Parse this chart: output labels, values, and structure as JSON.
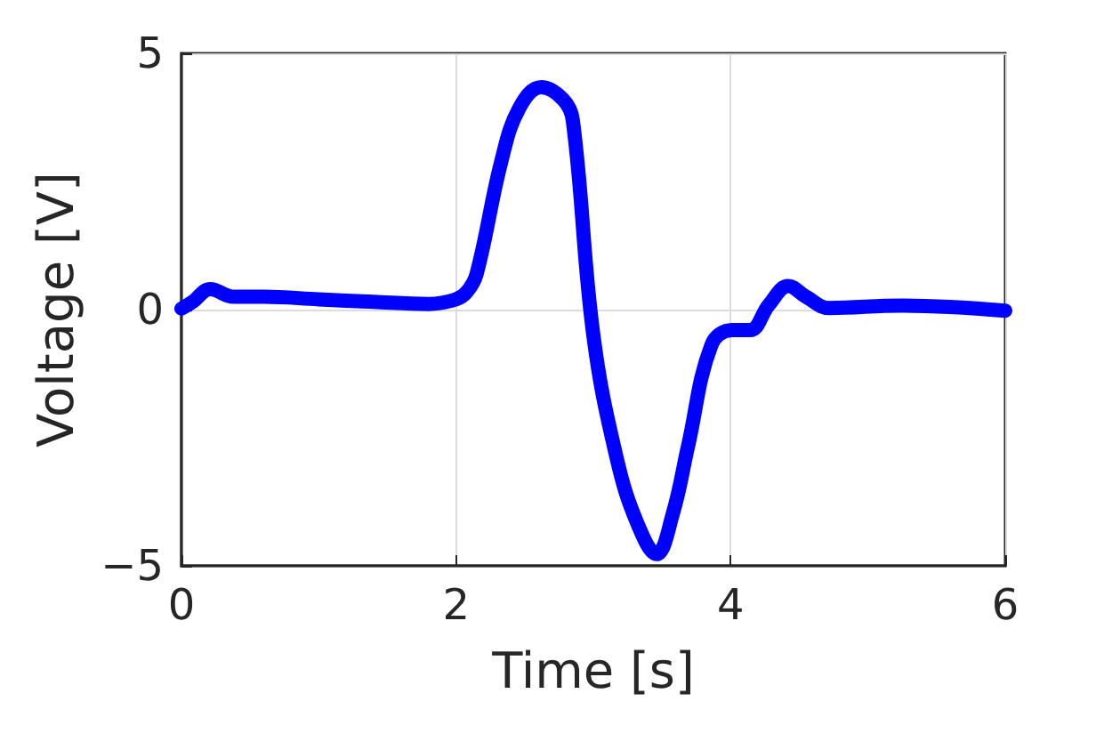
{
  "chart_data": {
    "type": "line",
    "xlabel": "Time [s]",
    "ylabel": "Voltage [V]",
    "series": [
      {
        "color": "#0000ff",
        "x": [
          0,
          0.08,
          0.21,
          0.38,
          0.6,
          1,
          1.4,
          1.8,
          2,
          2.08,
          2.15,
          2.33,
          2.46,
          2.62,
          2.78,
          2.85,
          3,
          3.17,
          3.32,
          3.46,
          3.58,
          3.69,
          3.86,
          4.01,
          4.14,
          4.28,
          4.42,
          4.55,
          4.72,
          5.24,
          6
        ],
        "values": [
          0.02,
          0.15,
          0.4,
          0.25,
          0.25,
          0.2,
          0.15,
          0.11,
          0.2,
          0.35,
          0.7,
          2.9,
          3.93,
          4.34,
          4.1,
          3.7,
          -0.5,
          -2.9,
          -4.17,
          -4.77,
          -3.97,
          -2.66,
          -0.69,
          -0.4,
          -0.4,
          0.1,
          0.46,
          0.25,
          0.03,
          0.08,
          -0.02
        ]
      }
    ],
    "xlim": [
      0,
      6
    ],
    "xticks": [
      0,
      2,
      4,
      6
    ],
    "ylim": [
      -5,
      5
    ],
    "yticks": [
      {
        "value": -5,
        "label": "−5"
      },
      0,
      5
    ],
    "grid": true,
    "line_style": "solid"
  }
}
